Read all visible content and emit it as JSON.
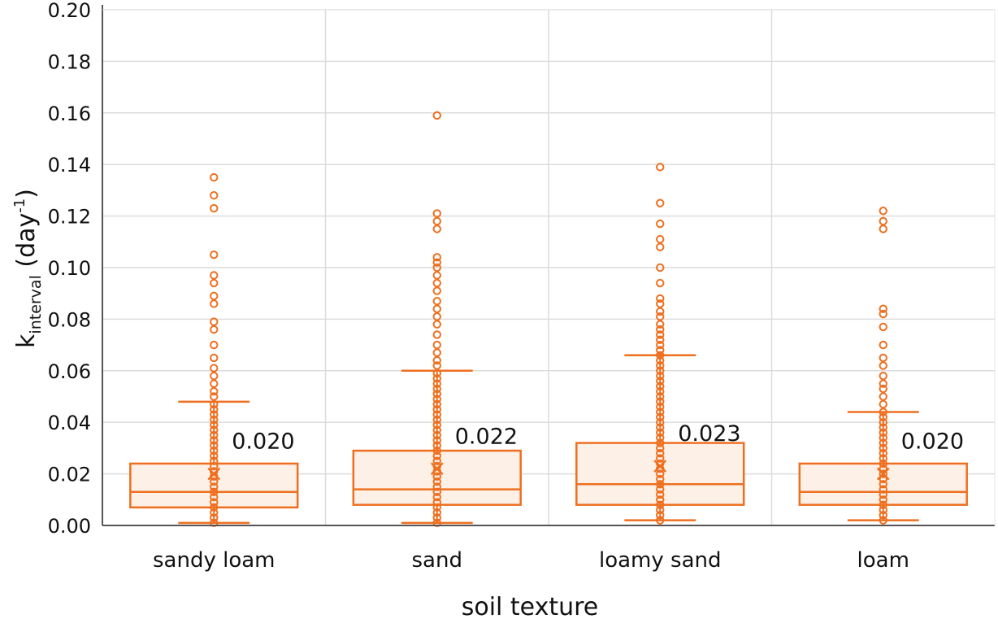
{
  "chart_data": {
    "type": "box",
    "title": "",
    "xlabel": "soil texture",
    "ylabel": {
      "main": "k",
      "subscript": "interval",
      "unit_open": " (day",
      "unit_exponent": "-1",
      "unit_close": ")"
    },
    "ylim": [
      0,
      0.2
    ],
    "yticks": [
      "0.00",
      "0.02",
      "0.04",
      "0.06",
      "0.08",
      "0.10",
      "0.12",
      "0.14",
      "0.16",
      "0.18",
      "0.20"
    ],
    "grid": true,
    "color": "#ee6f1f",
    "categories": [
      "sandy loam",
      "sand",
      "loamy sand",
      "loam"
    ],
    "boxes": [
      {
        "category": "sandy loam",
        "min": 0.001,
        "q1": 0.007,
        "median": 0.013,
        "q3": 0.024,
        "max": 0.048,
        "mean": 0.02,
        "mean_label": "0.020",
        "outliers": [
          0.05,
          0.052,
          0.055,
          0.058,
          0.061,
          0.065,
          0.07,
          0.076,
          0.079,
          0.086,
          0.089,
          0.094,
          0.097,
          0.105,
          0.123,
          0.128,
          0.135
        ]
      },
      {
        "category": "sand",
        "min": 0.001,
        "q1": 0.008,
        "median": 0.014,
        "q3": 0.029,
        "max": 0.06,
        "mean": 0.022,
        "mean_label": "0.022",
        "outliers": [
          0.062,
          0.064,
          0.067,
          0.07,
          0.074,
          0.078,
          0.081,
          0.084,
          0.087,
          0.091,
          0.094,
          0.097,
          0.1,
          0.102,
          0.104,
          0.115,
          0.118,
          0.121,
          0.159
        ]
      },
      {
        "category": "loamy sand",
        "min": 0.002,
        "q1": 0.008,
        "median": 0.016,
        "q3": 0.032,
        "max": 0.066,
        "mean": 0.023,
        "mean_label": "0.023",
        "outliers": [
          0.068,
          0.07,
          0.072,
          0.074,
          0.076,
          0.078,
          0.081,
          0.083,
          0.086,
          0.088,
          0.094,
          0.1,
          0.108,
          0.111,
          0.117,
          0.125,
          0.139
        ]
      },
      {
        "category": "loam",
        "min": 0.002,
        "q1": 0.008,
        "median": 0.013,
        "q3": 0.024,
        "max": 0.044,
        "mean": 0.02,
        "mean_label": "0.020",
        "outliers": [
          0.047,
          0.05,
          0.053,
          0.055,
          0.058,
          0.062,
          0.065,
          0.07,
          0.077,
          0.082,
          0.084,
          0.115,
          0.118,
          0.122
        ]
      }
    ]
  }
}
